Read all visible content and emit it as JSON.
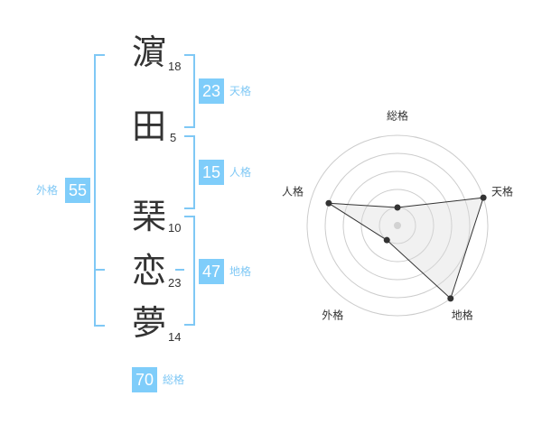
{
  "name_chars": [
    {
      "char": "濵",
      "strokes": "18"
    },
    {
      "char": "田",
      "strokes": "5"
    },
    {
      "char": "琹",
      "strokes": "10"
    },
    {
      "char": "恋",
      "strokes": "23"
    },
    {
      "char": "夢",
      "strokes": "14"
    }
  ],
  "scores": {
    "tenkaku": {
      "label": "天格",
      "value": "23"
    },
    "jinkaku": {
      "label": "人格",
      "value": "15"
    },
    "chikaku": {
      "label": "地格",
      "value": "47"
    },
    "gaikaku": {
      "label": "外格",
      "value": "55"
    },
    "soukaku": {
      "label": "総格",
      "value": "70"
    }
  },
  "colors": {
    "accent": "#7fcdfa",
    "bracket": "#7fc8f5",
    "text": "#333333"
  },
  "chart_data": {
    "type": "radar",
    "axes": [
      "総格",
      "天格",
      "地格",
      "外格",
      "人格"
    ],
    "values": [
      1,
      5,
      5,
      1,
      4
    ],
    "range": [
      0,
      5
    ],
    "rings": 5
  }
}
